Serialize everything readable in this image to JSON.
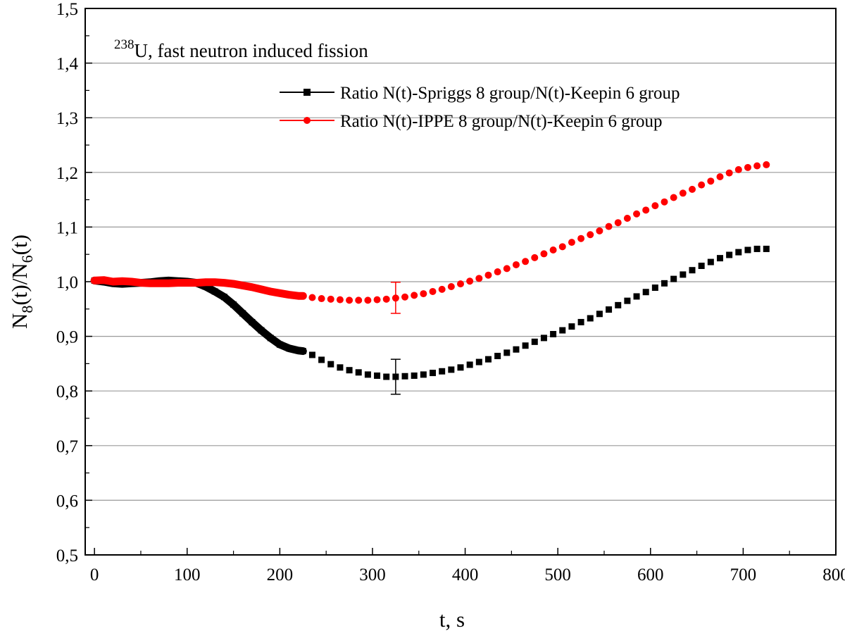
{
  "chart_data": {
    "type": "scatter",
    "title": "",
    "annotation": {
      "superscript": "238",
      "element": "U",
      "text": ", fast neutron induced fission"
    },
    "xlabel": "t, s",
    "ylabel": {
      "base1": "N",
      "sub1": "8",
      "mid": "(t)/N",
      "sub2": "6",
      "end": "(t)"
    },
    "xlim": [
      -10,
      800
    ],
    "ylim": [
      0.5,
      1.5
    ],
    "x_ticks": [
      0,
      100,
      200,
      300,
      400,
      500,
      600,
      700,
      800
    ],
    "x_tick_labels": [
      "0",
      "100",
      "200",
      "300",
      "400",
      "500",
      "600",
      "700",
      "800"
    ],
    "y_ticks": [
      0.5,
      0.6,
      0.7,
      0.8,
      0.9,
      1.0,
      1.1,
      1.2,
      1.3,
      1.4,
      1.5
    ],
    "y_tick_labels": [
      "0,5",
      "0,6",
      "0,7",
      "0,8",
      "0,9",
      "1,0",
      "1,1",
      "1,2",
      "1,3",
      "1,4",
      "1,5"
    ],
    "grid": true,
    "legend_position": "top-right",
    "series": [
      {
        "name": "Ratio N(t)-Spriggs 8 group/N(t)-Keepin 6 group",
        "color": "#000000",
        "marker": "square",
        "x": [
          0,
          10,
          20,
          30,
          40,
          50,
          60,
          70,
          80,
          90,
          100,
          110,
          120,
          130,
          140,
          150,
          160,
          170,
          180,
          190,
          200,
          210,
          220,
          225,
          235,
          245,
          255,
          265,
          275,
          285,
          295,
          305,
          315,
          325,
          335,
          345,
          355,
          365,
          375,
          385,
          395,
          405,
          415,
          425,
          435,
          445,
          455,
          465,
          475,
          485,
          495,
          505,
          515,
          525,
          535,
          545,
          555,
          565,
          575,
          585,
          595,
          605,
          615,
          625,
          635,
          645,
          655,
          665,
          675,
          685,
          695,
          705,
          715,
          725
        ],
        "y": [
          1.002,
          1.0,
          0.997,
          0.996,
          0.997,
          0.998,
          0.999,
          1.001,
          1.002,
          1.001,
          1.0,
          0.998,
          0.991,
          0.982,
          0.972,
          0.958,
          0.942,
          0.926,
          0.911,
          0.897,
          0.885,
          0.878,
          0.874,
          0.873,
          0.866,
          0.857,
          0.849,
          0.843,
          0.838,
          0.834,
          0.83,
          0.828,
          0.826,
          0.826,
          0.827,
          0.828,
          0.83,
          0.833,
          0.836,
          0.839,
          0.843,
          0.848,
          0.853,
          0.858,
          0.864,
          0.87,
          0.876,
          0.883,
          0.89,
          0.897,
          0.904,
          0.911,
          0.918,
          0.926,
          0.933,
          0.941,
          0.949,
          0.957,
          0.965,
          0.973,
          0.981,
          0.989,
          0.997,
          1.005,
          1.013,
          1.021,
          1.029,
          1.036,
          1.043,
          1.049,
          1.054,
          1.058,
          1.06,
          1.06
        ],
        "error_bar": {
          "x": 325,
          "y": 0.826,
          "low": 0.794,
          "high": 0.858
        }
      },
      {
        "name": "Ratio N(t)-IPPE 8 group/N(t)-Keepin 6 group",
        "color": "#ff0000",
        "marker": "circle",
        "x": [
          0,
          10,
          20,
          30,
          40,
          50,
          60,
          70,
          80,
          90,
          100,
          110,
          120,
          130,
          140,
          150,
          160,
          170,
          180,
          190,
          200,
          210,
          220,
          225,
          235,
          245,
          255,
          265,
          275,
          285,
          295,
          305,
          315,
          325,
          335,
          345,
          355,
          365,
          375,
          385,
          395,
          405,
          415,
          425,
          435,
          445,
          455,
          465,
          475,
          485,
          495,
          505,
          515,
          525,
          535,
          545,
          555,
          565,
          575,
          585,
          595,
          605,
          615,
          625,
          635,
          645,
          655,
          665,
          675,
          685,
          695,
          705,
          715,
          725
        ],
        "y": [
          1.002,
          1.003,
          1.0,
          1.001,
          1.0,
          0.998,
          0.997,
          0.997,
          0.997,
          0.998,
          0.998,
          0.998,
          0.999,
          0.999,
          0.998,
          0.996,
          0.993,
          0.99,
          0.986,
          0.982,
          0.979,
          0.976,
          0.974,
          0.974,
          0.971,
          0.969,
          0.968,
          0.967,
          0.966,
          0.966,
          0.966,
          0.967,
          0.968,
          0.97,
          0.972,
          0.975,
          0.978,
          0.982,
          0.986,
          0.991,
          0.996,
          1.001,
          1.006,
          1.012,
          1.018,
          1.024,
          1.031,
          1.037,
          1.044,
          1.051,
          1.058,
          1.064,
          1.072,
          1.079,
          1.086,
          1.093,
          1.101,
          1.108,
          1.116,
          1.124,
          1.131,
          1.139,
          1.146,
          1.154,
          1.162,
          1.169,
          1.177,
          1.184,
          1.192,
          1.199,
          1.205,
          1.209,
          1.212,
          1.214
        ],
        "error_bar": {
          "x": 325,
          "y": 0.97,
          "low": 0.942,
          "high": 0.999
        }
      }
    ]
  }
}
